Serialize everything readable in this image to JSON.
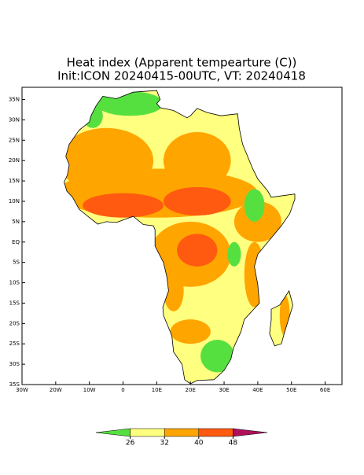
{
  "chart_data": {
    "type": "map",
    "title": "Heat index (Apparent tempearture (C))",
    "subtitle": "Init:ICON 20240415-00UTC, VT: 20240418",
    "xlim": [
      -30,
      65
    ],
    "ylim": [
      -35,
      38
    ],
    "xticks": [
      {
        "value": -30,
        "label": "30W"
      },
      {
        "value": -20,
        "label": "20W"
      },
      {
        "value": -10,
        "label": "10W"
      },
      0,
      {
        "value": 10,
        "label": "10E"
      },
      {
        "value": 20,
        "label": "20E"
      },
      {
        "value": 30,
        "label": "30E"
      },
      {
        "value": 40,
        "label": "40E"
      },
      {
        "value": 50,
        "label": "50E"
      },
      {
        "value": 60,
        "label": "60E"
      }
    ],
    "yticks": [
      {
        "value": 35,
        "label": "35N"
      },
      {
        "value": 30,
        "label": "30N"
      },
      {
        "value": 25,
        "label": "25N"
      },
      {
        "value": 20,
        "label": "20N"
      },
      {
        "value": 15,
        "label": "15N"
      },
      {
        "value": 10,
        "label": "10N"
      },
      {
        "value": 5,
        "label": "5N"
      },
      {
        "value": 0,
        "label": "EQ"
      },
      {
        "value": -5,
        "label": "5S"
      },
      {
        "value": -10,
        "label": "10S"
      },
      {
        "value": -15,
        "label": "15S"
      },
      {
        "value": -20,
        "label": "20S"
      },
      {
        "value": -25,
        "label": "25S"
      },
      {
        "value": -30,
        "label": "30S"
      },
      {
        "value": -35,
        "label": "35S"
      }
    ],
    "colorbar": {
      "levels": [
        26,
        32,
        40,
        48
      ],
      "colors": [
        "#55e040",
        "#ffff80",
        "#ffa500",
        "#ff5a10",
        "#b0105a"
      ]
    }
  }
}
